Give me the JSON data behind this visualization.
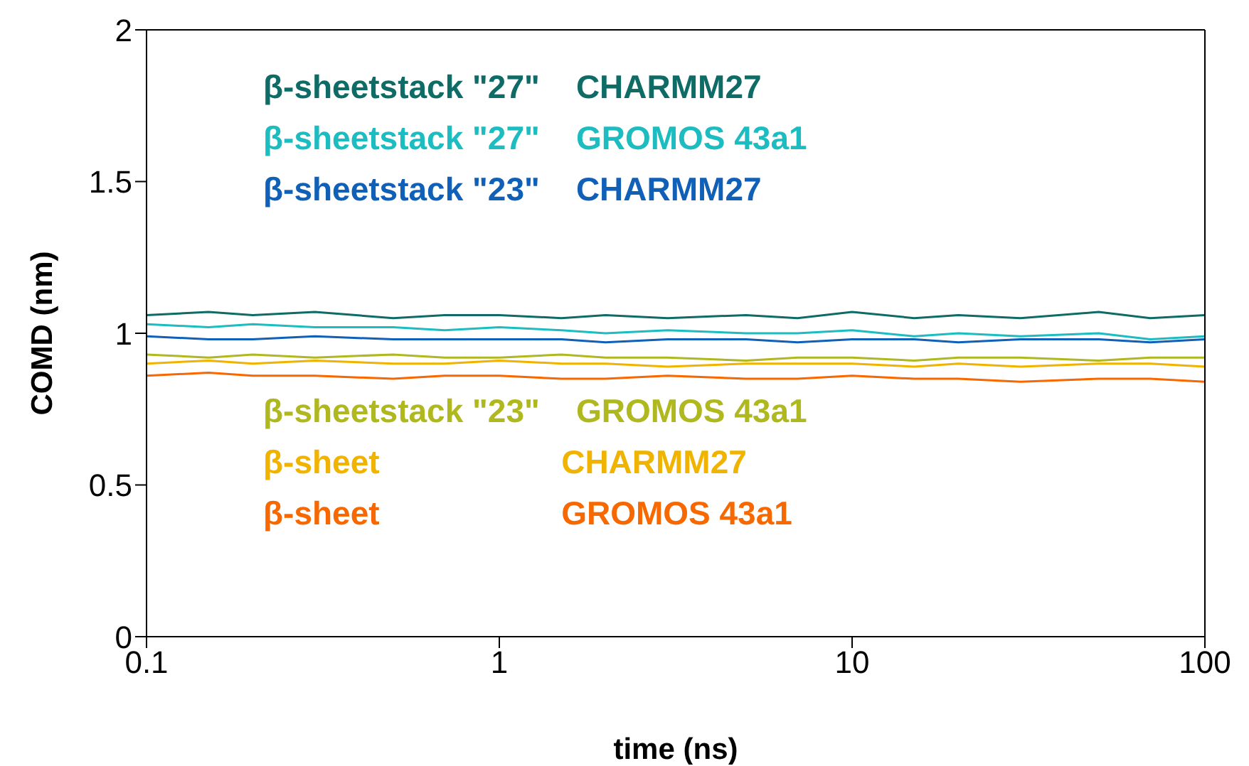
{
  "chart_data": {
    "type": "line",
    "xlabel": "time (ns)",
    "ylabel": "COMD (nm)",
    "log": "x",
    "xlim": [
      0.1,
      100
    ],
    "xticks": [
      0.1,
      1,
      10,
      100
    ],
    "ylim": [
      0,
      2
    ],
    "yticks": [
      0,
      0.5,
      1,
      1.5,
      2
    ],
    "grid": false,
    "legend": "left",
    "marker": "none",
    "line_style": "solid",
    "x": [
      0.1,
      0.15,
      0.2,
      0.3,
      0.5,
      0.7,
      1,
      1.5,
      2,
      3,
      5,
      7,
      10,
      15,
      20,
      30,
      50,
      70,
      100
    ],
    "series": [
      {
        "name": "β-sheetstack \"27\"    CHARMM27",
        "color": "#0e6b66",
        "values": [
          1.06,
          1.07,
          1.06,
          1.07,
          1.05,
          1.06,
          1.06,
          1.05,
          1.06,
          1.05,
          1.06,
          1.05,
          1.07,
          1.05,
          1.06,
          1.05,
          1.07,
          1.05,
          1.06
        ]
      },
      {
        "name": "β-sheetstack \"27\"    GROMOS 43a1",
        "color": "#1cbcc0",
        "values": [
          1.03,
          1.02,
          1.03,
          1.02,
          1.02,
          1.01,
          1.02,
          1.01,
          1.0,
          1.01,
          1.0,
          1.0,
          1.01,
          0.99,
          1.0,
          0.99,
          1.0,
          0.98,
          0.99
        ]
      },
      {
        "name": "β-sheetstack \"23\"    CHARMM27",
        "color": "#1060b8",
        "values": [
          0.99,
          0.98,
          0.98,
          0.99,
          0.98,
          0.98,
          0.98,
          0.98,
          0.97,
          0.98,
          0.98,
          0.97,
          0.98,
          0.98,
          0.97,
          0.98,
          0.98,
          0.97,
          0.98
        ]
      },
      {
        "name": "β-sheetstack \"23\"    GROMOS 43a1",
        "color": "#b0b820",
        "values": [
          0.93,
          0.92,
          0.93,
          0.92,
          0.93,
          0.92,
          0.92,
          0.93,
          0.92,
          0.92,
          0.91,
          0.92,
          0.92,
          0.91,
          0.92,
          0.92,
          0.91,
          0.92,
          0.92
        ]
      },
      {
        "name": "β-sheet                    CHARMM27",
        "color": "#f0b400",
        "values": [
          0.9,
          0.91,
          0.9,
          0.91,
          0.9,
          0.9,
          0.91,
          0.9,
          0.9,
          0.89,
          0.9,
          0.9,
          0.9,
          0.89,
          0.9,
          0.89,
          0.9,
          0.9,
          0.89
        ]
      },
      {
        "name": "β-sheet                    GROMOS 43a1",
        "color": "#f86800",
        "values": [
          0.86,
          0.87,
          0.86,
          0.86,
          0.85,
          0.86,
          0.86,
          0.85,
          0.85,
          0.86,
          0.85,
          0.85,
          0.86,
          0.85,
          0.85,
          0.84,
          0.85,
          0.85,
          0.84
        ]
      }
    ]
  }
}
